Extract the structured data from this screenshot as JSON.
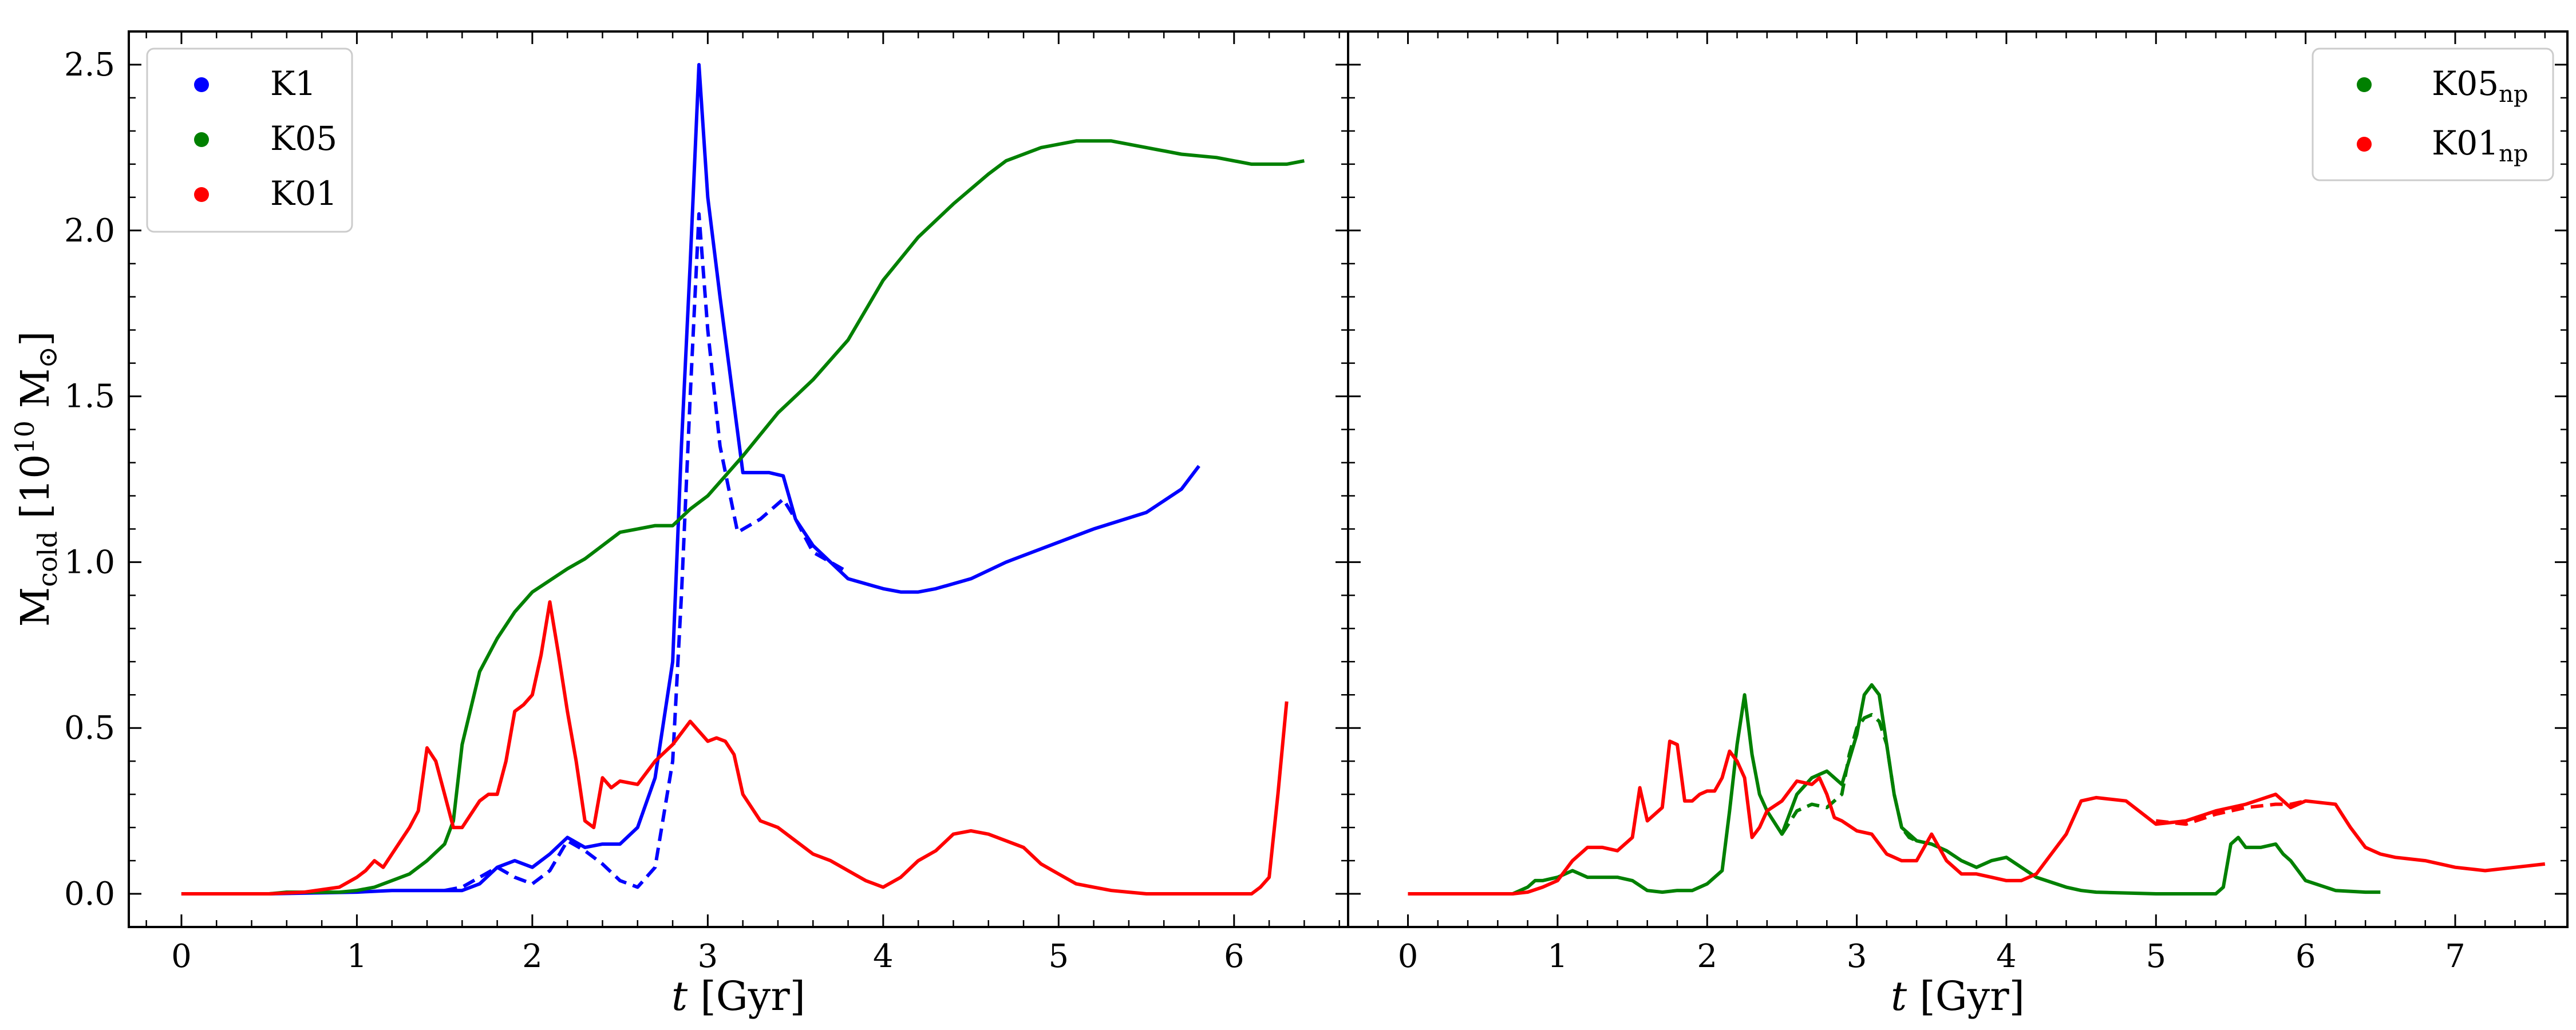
{
  "chart_data": [
    {
      "type": "line",
      "xlabel": "t [Gyr]",
      "ylabel": "M_cold [10^10 M_sun]",
      "xlim": [
        -0.3,
        6.65
      ],
      "ylim": [
        -0.1,
        2.6
      ],
      "xticks": [
        "0",
        "1",
        "2",
        "3",
        "4",
        "5",
        "6"
      ],
      "yticks": [
        "0.0",
        "0.5",
        "1.0",
        "1.5",
        "2.0",
        "2.5"
      ],
      "legend_location": "top-left",
      "legend": [
        {
          "label": "K1",
          "color": "#0000ff"
        },
        {
          "label": "K05",
          "color": "#008000"
        },
        {
          "label": "K01",
          "color": "#ff0000"
        }
      ],
      "series": [
        {
          "name": "K1",
          "color": "#0000ff",
          "style": "solid",
          "x": [
            0,
            0.5,
            1.0,
            1.2,
            1.4,
            1.6,
            1.7,
            1.8,
            1.9,
            2.0,
            2.1,
            2.2,
            2.3,
            2.4,
            2.5,
            2.6,
            2.7,
            2.8,
            2.85,
            2.9,
            2.95,
            3.0,
            3.07,
            3.2,
            3.35,
            3.43,
            3.5,
            3.6,
            3.7,
            3.8,
            4.0,
            4.1,
            4.2,
            4.3,
            4.5,
            4.7,
            5.0,
            5.2,
            5.5,
            5.7,
            5.8
          ],
          "y": [
            0,
            0,
            0.005,
            0.01,
            0.01,
            0.01,
            0.03,
            0.08,
            0.1,
            0.08,
            0.12,
            0.17,
            0.14,
            0.15,
            0.15,
            0.2,
            0.35,
            0.7,
            1.35,
            1.9,
            2.5,
            2.1,
            1.8,
            1.27,
            1.27,
            1.26,
            1.13,
            1.05,
            1.0,
            0.95,
            0.92,
            0.91,
            0.91,
            0.92,
            0.95,
            1.0,
            1.06,
            1.1,
            1.15,
            1.22,
            1.29
          ]
        },
        {
          "name": "K1 (dashed)",
          "color": "#0000ff",
          "style": "dashed",
          "x": [
            1.5,
            1.6,
            1.7,
            1.8,
            1.9,
            2.0,
            2.1,
            2.2,
            2.3,
            2.4,
            2.5,
            2.6,
            2.7,
            2.8,
            2.85,
            2.9,
            2.95,
            3.0,
            3.07,
            3.17,
            3.3,
            3.43,
            3.5,
            3.6,
            3.8
          ],
          "y": [
            0.01,
            0.02,
            0.05,
            0.08,
            0.05,
            0.03,
            0.07,
            0.16,
            0.13,
            0.09,
            0.04,
            0.02,
            0.08,
            0.4,
            0.9,
            1.5,
            2.05,
            1.7,
            1.35,
            1.09,
            1.13,
            1.19,
            1.13,
            1.03,
            0.97
          ]
        },
        {
          "name": "K05",
          "color": "#008000",
          "style": "solid",
          "x": [
            0,
            0.5,
            0.6,
            0.7,
            0.8,
            0.9,
            1.0,
            1.1,
            1.2,
            1.3,
            1.4,
            1.5,
            1.55,
            1.6,
            1.7,
            1.8,
            1.9,
            2.0,
            2.2,
            2.3,
            2.4,
            2.5,
            2.6,
            2.7,
            2.8,
            2.9,
            3.0,
            3.2,
            3.4,
            3.6,
            3.8,
            3.9,
            4.0,
            4.2,
            4.4,
            4.6,
            4.7,
            4.9,
            5.1,
            5.3,
            5.5,
            5.7,
            5.9,
            6.1,
            6.3,
            6.4
          ],
          "y": [
            0,
            0,
            0.005,
            0.005,
            0.005,
            0.005,
            0.01,
            0.02,
            0.04,
            0.06,
            0.1,
            0.15,
            0.22,
            0.45,
            0.67,
            0.77,
            0.85,
            0.91,
            0.98,
            1.01,
            1.05,
            1.09,
            1.1,
            1.11,
            1.11,
            1.16,
            1.2,
            1.32,
            1.45,
            1.55,
            1.67,
            1.76,
            1.85,
            1.98,
            2.08,
            2.17,
            2.21,
            2.25,
            2.27,
            2.27,
            2.25,
            2.23,
            2.22,
            2.2,
            2.2,
            2.21
          ]
        },
        {
          "name": "K01",
          "color": "#ff0000",
          "style": "solid",
          "x": [
            0,
            0.3,
            0.5,
            0.7,
            0.9,
            1.0,
            1.05,
            1.1,
            1.15,
            1.2,
            1.25,
            1.3,
            1.35,
            1.4,
            1.45,
            1.5,
            1.55,
            1.6,
            1.7,
            1.75,
            1.8,
            1.85,
            1.9,
            1.95,
            2.0,
            2.05,
            2.1,
            2.15,
            2.2,
            2.25,
            2.3,
            2.35,
            2.4,
            2.45,
            2.5,
            2.6,
            2.7,
            2.8,
            2.9,
            3.0,
            3.05,
            3.1,
            3.15,
            3.2,
            3.3,
            3.4,
            3.5,
            3.6,
            3.7,
            3.8,
            3.9,
            4.0,
            4.1,
            4.2,
            4.3,
            4.4,
            4.5,
            4.6,
            4.7,
            4.8,
            4.9,
            5.0,
            5.1,
            5.2,
            5.3,
            5.4,
            5.5,
            5.6,
            5.8,
            6.0,
            6.1,
            6.15,
            6.2,
            6.25,
            6.3
          ],
          "y": [
            0,
            0,
            0,
            0.005,
            0.02,
            0.05,
            0.07,
            0.1,
            0.08,
            0.12,
            0.16,
            0.2,
            0.25,
            0.44,
            0.4,
            0.3,
            0.2,
            0.2,
            0.28,
            0.3,
            0.3,
            0.4,
            0.55,
            0.57,
            0.6,
            0.72,
            0.88,
            0.72,
            0.55,
            0.4,
            0.22,
            0.2,
            0.35,
            0.32,
            0.34,
            0.33,
            0.4,
            0.45,
            0.52,
            0.46,
            0.47,
            0.46,
            0.42,
            0.3,
            0.22,
            0.2,
            0.16,
            0.12,
            0.1,
            0.07,
            0.04,
            0.02,
            0.05,
            0.1,
            0.13,
            0.18,
            0.19,
            0.18,
            0.16,
            0.14,
            0.09,
            0.06,
            0.03,
            0.02,
            0.01,
            0.005,
            0,
            0,
            0,
            0,
            0,
            0.02,
            0.05,
            0.3,
            0.58
          ]
        }
      ]
    },
    {
      "type": "line",
      "xlabel": "t [Gyr]",
      "ylabel": "",
      "xlim": [
        -0.4,
        7.75
      ],
      "ylim": [
        -0.1,
        2.6
      ],
      "xticks": [
        "0",
        "1",
        "2",
        "3",
        "4",
        "5",
        "6",
        "7"
      ],
      "legend_location": "top-right",
      "legend": [
        {
          "label": "K05",
          "sub": "np",
          "color": "#008000"
        },
        {
          "label": "K01",
          "sub": "np",
          "color": "#ff0000"
        }
      ],
      "series": [
        {
          "name": "K05np",
          "color": "#008000",
          "style": "solid",
          "x": [
            0,
            0.7,
            0.8,
            0.85,
            0.9,
            1.0,
            1.1,
            1.15,
            1.2,
            1.3,
            1.4,
            1.5,
            1.6,
            1.7,
            1.8,
            1.9,
            2.0,
            2.1,
            2.15,
            2.2,
            2.25,
            2.3,
            2.35,
            2.4,
            2.5,
            2.6,
            2.7,
            2.8,
            2.9,
            3.0,
            3.05,
            3.1,
            3.15,
            3.2,
            3.25,
            3.3,
            3.35,
            3.4,
            3.5,
            3.6,
            3.7,
            3.8,
            3.9,
            4.0,
            4.2,
            4.4,
            4.5,
            4.6,
            5.0,
            5.2,
            5.4,
            5.45,
            5.5,
            5.55,
            5.6,
            5.7,
            5.8,
            5.85,
            5.9,
            6.0,
            6.2,
            6.4,
            6.5
          ],
          "y": [
            0,
            0,
            0.02,
            0.04,
            0.04,
            0.05,
            0.07,
            0.06,
            0.05,
            0.05,
            0.05,
            0.04,
            0.01,
            0.005,
            0.01,
            0.01,
            0.03,
            0.07,
            0.25,
            0.45,
            0.6,
            0.42,
            0.3,
            0.25,
            0.18,
            0.3,
            0.35,
            0.37,
            0.33,
            0.48,
            0.6,
            0.63,
            0.6,
            0.45,
            0.3,
            0.2,
            0.18,
            0.16,
            0.15,
            0.13,
            0.1,
            0.08,
            0.1,
            0.11,
            0.05,
            0.02,
            0.01,
            0.005,
            0,
            0,
            0,
            0.02,
            0.15,
            0.17,
            0.14,
            0.14,
            0.15,
            0.12,
            0.1,
            0.04,
            0.01,
            0.005,
            0.005
          ]
        },
        {
          "name": "K05np (dashed)",
          "color": "#008000",
          "style": "dashed",
          "x": [
            2.5,
            2.6,
            2.7,
            2.8,
            2.9,
            2.95,
            3.0,
            3.05,
            3.1,
            3.15,
            3.2,
            3.25,
            3.3,
            3.35,
            3.4
          ],
          "y": [
            0.18,
            0.25,
            0.27,
            0.26,
            0.3,
            0.42,
            0.5,
            0.53,
            0.54,
            0.52,
            0.45,
            0.3,
            0.2,
            0.17,
            0.16
          ]
        },
        {
          "name": "K01np",
          "color": "#ff0000",
          "style": "solid",
          "x": [
            0,
            0.5,
            0.7,
            0.8,
            0.9,
            1.0,
            1.1,
            1.2,
            1.3,
            1.4,
            1.5,
            1.55,
            1.6,
            1.7,
            1.75,
            1.8,
            1.85,
            1.9,
            1.95,
            2.0,
            2.05,
            2.1,
            2.15,
            2.2,
            2.25,
            2.3,
            2.35,
            2.4,
            2.5,
            2.6,
            2.7,
            2.75,
            2.8,
            2.85,
            2.9,
            3.0,
            3.1,
            3.2,
            3.3,
            3.4,
            3.5,
            3.6,
            3.7,
            3.8,
            3.9,
            4.0,
            4.1,
            4.2,
            4.3,
            4.4,
            4.5,
            4.6,
            4.8,
            5.0,
            5.2,
            5.4,
            5.6,
            5.8,
            5.9,
            6.0,
            6.2,
            6.3,
            6.4,
            6.5,
            6.6,
            6.8,
            7.0,
            7.2,
            7.4,
            7.6
          ],
          "y": [
            0,
            0,
            0,
            0.005,
            0.02,
            0.04,
            0.1,
            0.14,
            0.14,
            0.13,
            0.17,
            0.32,
            0.22,
            0.26,
            0.46,
            0.45,
            0.28,
            0.28,
            0.3,
            0.31,
            0.31,
            0.35,
            0.43,
            0.4,
            0.35,
            0.17,
            0.2,
            0.25,
            0.28,
            0.34,
            0.33,
            0.35,
            0.3,
            0.23,
            0.22,
            0.19,
            0.18,
            0.12,
            0.1,
            0.1,
            0.18,
            0.1,
            0.06,
            0.06,
            0.05,
            0.04,
            0.04,
            0.06,
            0.12,
            0.18,
            0.28,
            0.29,
            0.28,
            0.21,
            0.22,
            0.25,
            0.27,
            0.3,
            0.26,
            0.28,
            0.27,
            0.2,
            0.14,
            0.12,
            0.11,
            0.1,
            0.08,
            0.07,
            0.08,
            0.09
          ]
        },
        {
          "name": "K01np (dashed)",
          "color": "#ff0000",
          "style": "dashed",
          "x": [
            5.0,
            5.2,
            5.4,
            5.6,
            5.8,
            5.9,
            6.0
          ],
          "y": [
            0.22,
            0.21,
            0.24,
            0.26,
            0.27,
            0.27,
            0.28
          ]
        }
      ]
    }
  ]
}
